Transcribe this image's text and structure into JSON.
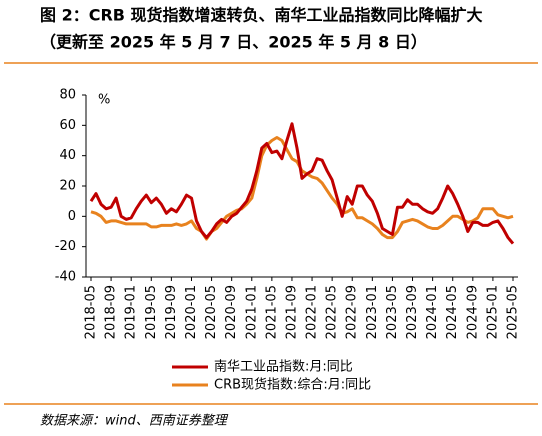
{
  "chart_data": {
    "type": "line",
    "title": "图 2：CRB 现货指数增速转负、南华工业品指数同比降幅扩大",
    "subtitle": "（更新至 2025 年 5 月 7 日、2025 年 5 月 8 日）",
    "y_unit": "%",
    "source": "数据来源：wind、西南证券整理",
    "categories": [
      "2018-05",
      null,
      null,
      null,
      "2018-09",
      null,
      null,
      null,
      "2019-01",
      null,
      null,
      null,
      "2019-05",
      null,
      null,
      null,
      "2019-09",
      null,
      null,
      null,
      "2020-01",
      null,
      null,
      null,
      "2020-05",
      null,
      null,
      null,
      "2020-09",
      null,
      null,
      null,
      "2021-01",
      null,
      null,
      null,
      "2021-05",
      null,
      null,
      null,
      "2021-09",
      null,
      null,
      null,
      "2022-01",
      null,
      null,
      null,
      "2022-05",
      null,
      null,
      null,
      "2022-09",
      null,
      null,
      null,
      "2023-01",
      null,
      null,
      null,
      "2023-05",
      null,
      null,
      null,
      "2023-09",
      null,
      null,
      null,
      "2024-01",
      null,
      null,
      null,
      "2024-05",
      null,
      null,
      null,
      "2024-09",
      null,
      null,
      null,
      "2025-01",
      null,
      null,
      null,
      "2025-05"
    ],
    "series": [
      {
        "name": "南华工业品指数:月:同比",
        "color": "#c00000",
        "values": [
          10,
          15,
          8,
          5,
          6,
          12,
          0,
          -2,
          -1,
          5,
          10,
          14,
          9,
          12,
          8,
          2,
          5,
          3,
          8,
          14,
          12,
          -3,
          -10,
          -14,
          -10,
          -5,
          -2,
          -4,
          0,
          2,
          6,
          10,
          18,
          30,
          45,
          48,
          42,
          43,
          38,
          50,
          61,
          45,
          25,
          28,
          30,
          38,
          37,
          30,
          24,
          12,
          0,
          13,
          8,
          20,
          20,
          14,
          10,
          2,
          -8,
          -10,
          -12,
          6,
          6,
          11,
          8,
          8,
          5,
          3,
          2,
          5,
          12,
          20,
          15,
          8,
          0,
          -10,
          -4,
          -4,
          -6,
          -6,
          -4,
          -3,
          -8,
          -14,
          -18
        ]
      },
      {
        "name": "CRB现货指数:综合:月:同比",
        "color": "#e8821e",
        "values": [
          3,
          2,
          0,
          -4,
          -3,
          -3,
          -4,
          -5,
          -5,
          -5,
          -5,
          -5,
          -7,
          -7,
          -6,
          -6,
          -6,
          -5,
          -6,
          -5,
          -3,
          -8,
          -10,
          -15,
          -10,
          -8,
          -4,
          0,
          2,
          4,
          5,
          8,
          12,
          25,
          40,
          47,
          50,
          52,
          50,
          44,
          38,
          36,
          30,
          28,
          26,
          25,
          22,
          17,
          12,
          8,
          2,
          3,
          5,
          -1,
          -1,
          -3,
          -5,
          -8,
          -12,
          -14,
          -14,
          -10,
          -4,
          -3,
          -2,
          -3,
          -5,
          -7,
          -8,
          -8,
          -6,
          -3,
          0,
          0,
          -2,
          -4,
          -3,
          -1,
          5,
          5,
          5,
          1,
          0,
          -1,
          0
        ]
      }
    ],
    "ylim": [
      -40,
      80
    ],
    "yticks": [
      -40,
      -20,
      0,
      20,
      40,
      60,
      80
    ],
    "grid": false,
    "legend": "bottom"
  }
}
